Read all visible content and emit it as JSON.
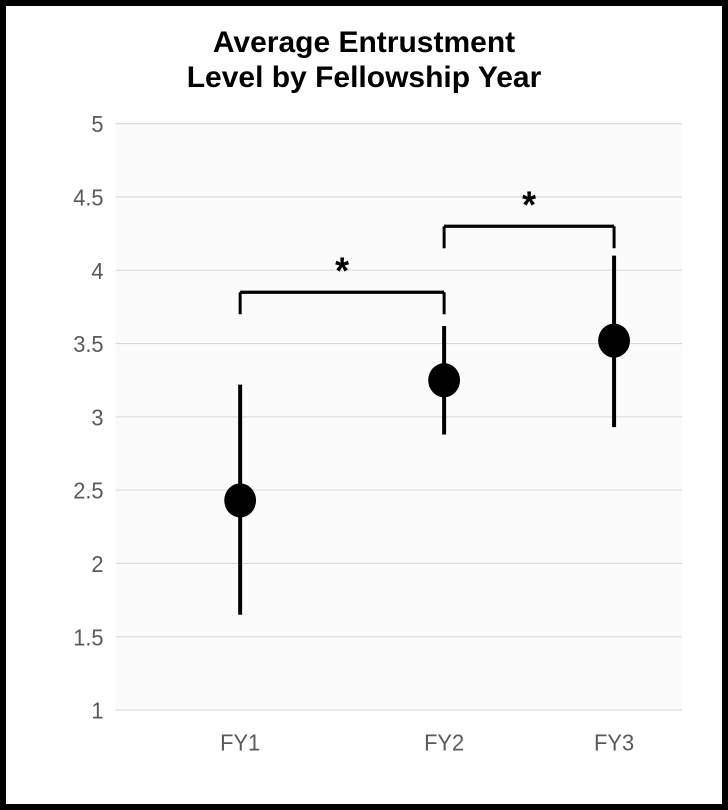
{
  "chart": {
    "type": "errorbar-scatter",
    "title_line1": "Average Entrustment",
    "title_line2": "Level by Fellowship Year",
    "title_fontsize": 30,
    "title_fontweight": "700",
    "background_color": "#ffffff",
    "plot_background_color": "#fbfbfb",
    "frame_border_color": "#000000",
    "frame_border_width": 6,
    "grid_color": "#d9d9d9",
    "axis_label_color": "#5a5a5a",
    "axis_label_fontsize": 22,
    "ylim": [
      1,
      5
    ],
    "ytick_step": 0.5,
    "yticks": [
      "1",
      "1.5",
      "2",
      "2.5",
      "3",
      "3.5",
      "4",
      "4.5",
      "5"
    ],
    "categories": [
      "FY1",
      "FY2",
      "FY3"
    ],
    "series": {
      "points": [
        {
          "x": "FY1",
          "mean": 2.43,
          "low": 1.65,
          "high": 3.22
        },
        {
          "x": "FY2",
          "mean": 3.25,
          "low": 2.88,
          "high": 3.62
        },
        {
          "x": "FY3",
          "mean": 3.52,
          "low": 2.93,
          "high": 4.1
        }
      ],
      "marker_color": "#000000",
      "marker_radius": 16,
      "errorbar_color": "#000000",
      "errorbar_width": 4
    },
    "significance": [
      {
        "from": "FY1",
        "to": "FY2",
        "label": "*",
        "y": 3.85,
        "drop": 0.15
      },
      {
        "from": "FY2",
        "to": "FY3",
        "label": "*",
        "y": 4.3,
        "drop": 0.15
      }
    ],
    "significance_star_fontsize": 36,
    "x_positions": {
      "FY1": 0.22,
      "FY2": 0.58,
      "FY3": 0.88
    }
  }
}
